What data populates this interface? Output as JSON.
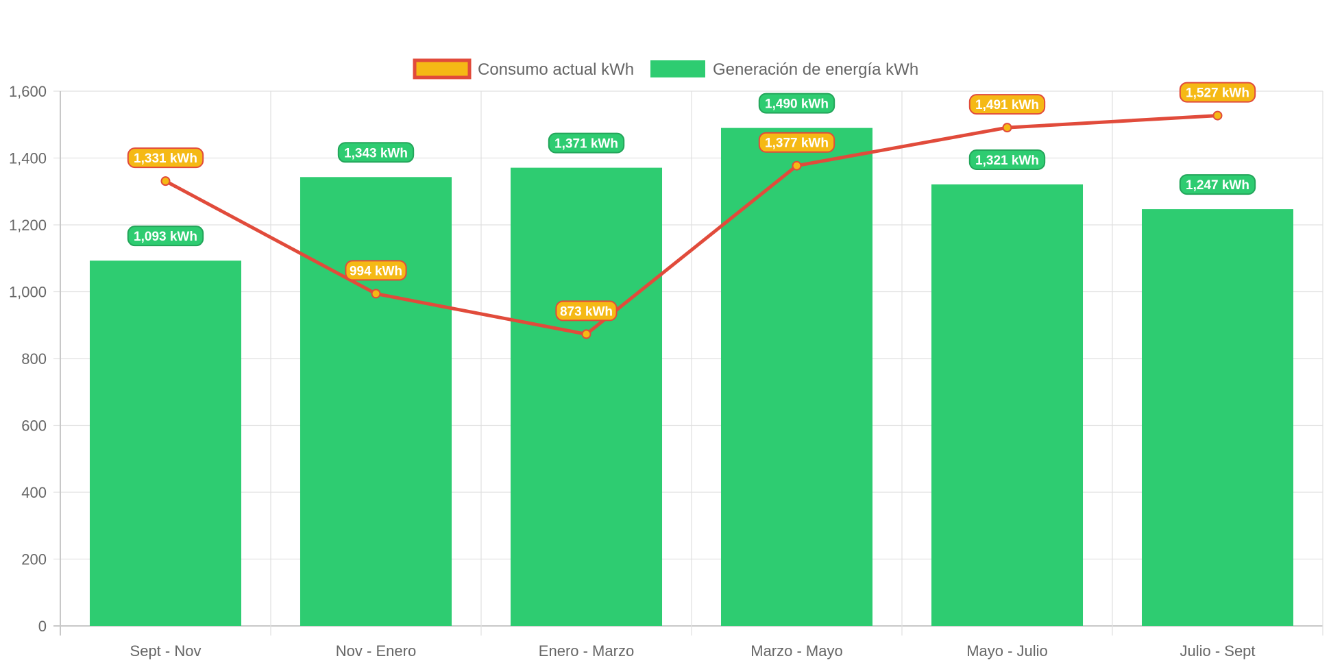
{
  "chart_data": {
    "type": "bar",
    "categories": [
      "Sept - Nov",
      "Nov - Enero",
      "Enero - Marzo",
      "Marzo - Mayo",
      "Mayo - Julio",
      "Julio - Sept"
    ],
    "series": [
      {
        "name": "Consumo actual kWh",
        "type": "line",
        "values": [
          1331,
          994,
          873,
          1377,
          1491,
          1527
        ],
        "labels": [
          "1,331 kWh",
          "994 kWh",
          "873 kWh",
          "1,377 kWh",
          "1,491 kWh",
          "1,527 kWh"
        ],
        "line_color": "#e14b3b",
        "fill_color": "#f5b915"
      },
      {
        "name": "Generación de energía kWh",
        "type": "bar",
        "values": [
          1093,
          1343,
          1371,
          1490,
          1321,
          1247
        ],
        "labels": [
          "1,093 kWh",
          "1,343 kWh",
          "1,371 kWh",
          "1,490 kWh",
          "1,321 kWh",
          "1,247 kWh"
        ],
        "color": "#2ecc71"
      }
    ],
    "ylim": [
      0,
      1600
    ],
    "yticks": [
      "0",
      "200",
      "400",
      "600",
      "800",
      "1,000",
      "1,200",
      "1,400",
      "1,600"
    ],
    "grid": true,
    "legend": "top-center"
  }
}
